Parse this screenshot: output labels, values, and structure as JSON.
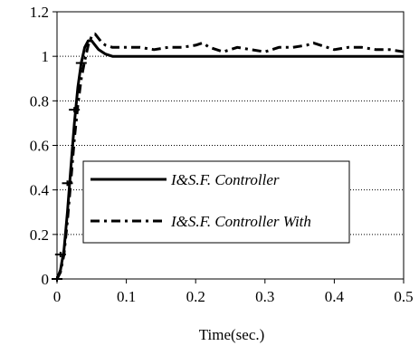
{
  "chart_data": {
    "type": "line",
    "xlabel": "Time(sec.)",
    "ylabel": "",
    "xlim": [
      0,
      0.5
    ],
    "ylim": [
      0,
      1.2
    ],
    "xticks": [
      0,
      0.1,
      0.2,
      0.3,
      0.4,
      0.5
    ],
    "xtick_labels": [
      "0",
      "0.1",
      "0.2",
      "0.3",
      "0.4",
      "0.5"
    ],
    "yticks": [
      0,
      0.2,
      0.4,
      0.6,
      0.8,
      1,
      1.2
    ],
    "ytick_labels": [
      "0",
      "0.2",
      "0.4",
      "0.6",
      "0.8",
      "1",
      "1.2"
    ],
    "grid": "horizontal-dotted",
    "legend_position": "center-left",
    "series": [
      {
        "name": "I&S.F. Controller",
        "style": "solid",
        "color": "#000000",
        "x": [
          0,
          0.005,
          0.01,
          0.015,
          0.02,
          0.025,
          0.03,
          0.035,
          0.04,
          0.045,
          0.05,
          0.055,
          0.06,
          0.07,
          0.08,
          0.09,
          0.1,
          0.12,
          0.15,
          0.2,
          0.25,
          0.3,
          0.35,
          0.4,
          0.45,
          0.5
        ],
        "y": [
          0,
          0.04,
          0.13,
          0.3,
          0.5,
          0.7,
          0.86,
          0.97,
          1.04,
          1.07,
          1.07,
          1.05,
          1.03,
          1.01,
          1.0,
          1.0,
          1.0,
          1.0,
          1.0,
          1.0,
          1.0,
          1.0,
          1.0,
          1.0,
          1.0,
          1.0
        ]
      },
      {
        "name": "I&S.F. Controller With",
        "style": "dashed",
        "color": "#000000",
        "marker": "plus",
        "x": [
          0,
          0.005,
          0.01,
          0.015,
          0.02,
          0.025,
          0.03,
          0.035,
          0.04,
          0.045,
          0.05,
          0.055,
          0.06,
          0.065,
          0.07,
          0.08,
          0.09,
          0.1,
          0.12,
          0.14,
          0.16,
          0.18,
          0.2,
          0.21,
          0.22,
          0.24,
          0.26,
          0.28,
          0.3,
          0.32,
          0.34,
          0.36,
          0.37,
          0.38,
          0.4,
          0.42,
          0.44,
          0.46,
          0.48,
          0.5
        ],
        "y": [
          0,
          0.03,
          0.11,
          0.26,
          0.44,
          0.63,
          0.78,
          0.9,
          0.98,
          1.05,
          1.09,
          1.1,
          1.08,
          1.06,
          1.05,
          1.04,
          1.04,
          1.04,
          1.04,
          1.03,
          1.04,
          1.04,
          1.05,
          1.06,
          1.04,
          1.02,
          1.04,
          1.03,
          1.02,
          1.04,
          1.04,
          1.05,
          1.06,
          1.05,
          1.03,
          1.04,
          1.04,
          1.03,
          1.03,
          1.02
        ]
      }
    ],
    "markers": {
      "x": [
        0,
        0.005,
        0.015,
        0.025,
        0.035
      ],
      "y": [
        0,
        0.11,
        0.43,
        0.76,
        0.97
      ]
    }
  }
}
